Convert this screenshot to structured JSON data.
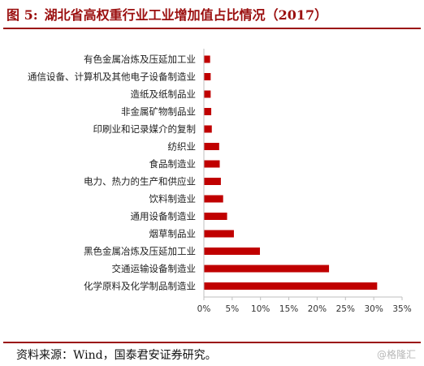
{
  "header": {
    "figure_prefix": "图 5:",
    "title": "湖北省高权重行业工业增加值占比情况（2017）"
  },
  "footer": {
    "source": "资料来源：Wind，国泰君安证券研究。",
    "watermark": "@格隆汇"
  },
  "colors": {
    "accent": "#9b0f0f",
    "bar": "#c00000",
    "axis": "#bfbfbf",
    "label_text": "#222222"
  },
  "chart_data": {
    "type": "bar",
    "orientation": "horizontal",
    "categories": [
      "有色金属冶炼及压延加工业",
      "通信设备、计算机及其他电子设备制造业",
      "造纸及纸制品业",
      "非金属矿物制品业",
      "印刷业和记录媒介的复制",
      "纺织业",
      "食品制造业",
      "电力、热力的生产和供应业",
      "饮料制造业",
      "通用设备制造业",
      "烟草制品业",
      "黑色金属冶炼及压延加工业",
      "交通运输设备制造业",
      "化学原料及化学制品制造业"
    ],
    "values": [
      1.1,
      1.2,
      1.2,
      1.3,
      1.4,
      2.7,
      2.8,
      3.0,
      3.4,
      4.1,
      5.3,
      9.9,
      22.1,
      30.6
    ],
    "xlim": [
      0,
      35
    ],
    "xticks": [
      "0%",
      "5%",
      "10%",
      "15%",
      "20%",
      "25%",
      "30%",
      "35%"
    ],
    "xlabel": "",
    "ylabel": "",
    "grid": false,
    "legend": "none"
  }
}
